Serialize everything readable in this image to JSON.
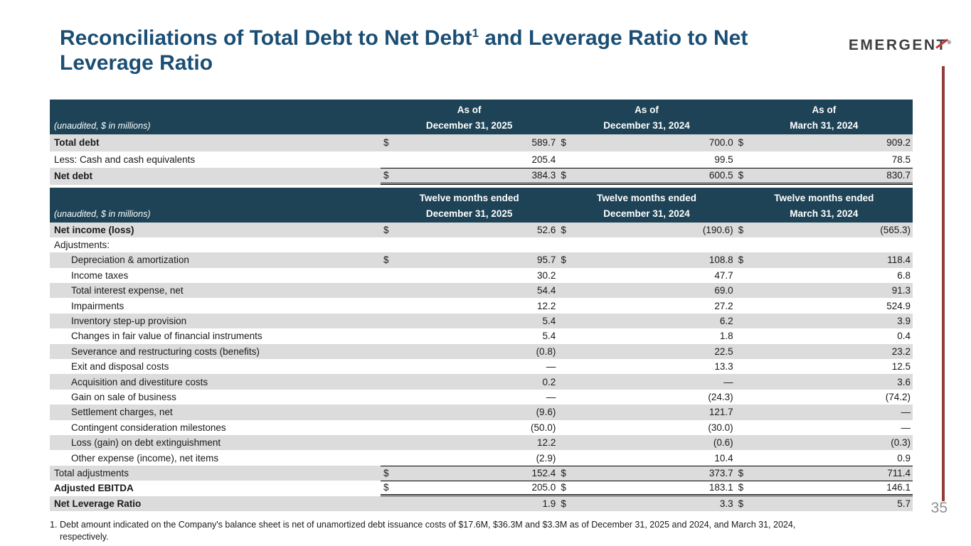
{
  "slide": {
    "title": {
      "pre": "Reconciliations of Total Debt to Net Debt",
      "sup": "1",
      "post": " and Leverage Ratio to Net",
      "line2": "Leverage Ratio"
    },
    "logo": {
      "pre": "EMERGEN",
      "t": "T",
      "reg": "®"
    },
    "page_number": "35",
    "footnote": {
      "marker": "1.",
      "line1": "Debt amount indicated on the Company's balance sheet is net of unamortized debt issuance costs of $17.6M,  $36.3M and $3.3M as of December 31, 2025 and 2024, and March 31, 2024,",
      "line2": "respectively."
    },
    "colors": {
      "title_blue": "#1b4e74",
      "header_bg": "#1e4356",
      "row_gray": "#dcdcdc",
      "accent_red": "#943c3c",
      "logo_red": "#c13a31"
    }
  },
  "table1": {
    "unaudited": "(unaudited, $ in millions)",
    "headers": [
      {
        "line1": "As of",
        "line2": "December 31, 2025"
      },
      {
        "line1": "As of",
        "line2": "December 31, 2024"
      },
      {
        "line1": "As of",
        "line2": "March 31, 2024"
      }
    ],
    "rows": [
      {
        "label": "Total debt",
        "d0": "$",
        "v0": "589.7",
        "d1": "$",
        "v1": "700.0",
        "d2": "$",
        "v2": "909.2"
      },
      {
        "label": "Less: Cash and cash equivalents",
        "v0": "205.4",
        "v1": "99.5",
        "v2": "78.5"
      },
      {
        "label": "Net debt",
        "d0": "$",
        "v0": "384.3",
        "d1": "$",
        "v1": "600.5",
        "d2": "$",
        "v2": "830.7"
      }
    ]
  },
  "table2": {
    "unaudited": "(unaudited, $ in millions)",
    "headers": [
      {
        "line1": "Twelve months ended",
        "line2": "December 31, 2025"
      },
      {
        "line1": "Twelve months ended",
        "line2": "December 31, 2024"
      },
      {
        "line1": "Twelve months ended",
        "line2": "March 31, 2024"
      }
    ],
    "rows": [
      {
        "label": "Net income (loss)",
        "d0": "$",
        "v0": "52.6",
        "d1": "$",
        "v1": "(190.6)",
        "d2": "$",
        "v2": "(565.3)"
      },
      {
        "label": "Adjustments:"
      },
      {
        "label": "Depreciation & amortization",
        "d0": "$",
        "v0": "95.7",
        "d1": "$",
        "v1": "108.8",
        "d2": "$",
        "v2": "118.4"
      },
      {
        "label": "Income taxes",
        "v0": "30.2",
        "v1": "47.7",
        "v2": "6.8"
      },
      {
        "label": "Total interest expense, net",
        "v0": "54.4",
        "v1": "69.0",
        "v2": "91.3"
      },
      {
        "label": "Impairments",
        "v0": "12.2",
        "v1": "27.2",
        "v2": "524.9"
      },
      {
        "label": "Inventory step-up provision",
        "v0": "5.4",
        "v1": "6.2",
        "v2": "3.9"
      },
      {
        "label": "Changes in fair value of financial instruments",
        "v0": "5.4",
        "v1": "1.8",
        "v2": "0.4"
      },
      {
        "label": "Severance and restructuring costs (benefits)",
        "v0": "(0.8)",
        "v1": "22.5",
        "v2": "23.2"
      },
      {
        "label": "Exit and disposal costs",
        "v0": "—",
        "v1": "13.3",
        "v2": "12.5"
      },
      {
        "label": "Acquisition and divestiture costs",
        "v0": "0.2",
        "v1": "—",
        "v2": "3.6"
      },
      {
        "label": "Gain on sale of business",
        "v0": "—",
        "v1": "(24.3)",
        "v2": "(74.2)"
      },
      {
        "label": "Settlement charges, net",
        "v0": "(9.6)",
        "v1": "121.7",
        "v2": "—"
      },
      {
        "label": "Contingent consideration milestones",
        "v0": "(50.0)",
        "v1": "(30.0)",
        "v2": "—"
      },
      {
        "label": "Loss (gain) on debt extinguishment",
        "v0": "12.2",
        "v1": "(0.6)",
        "v2": "(0.3)"
      },
      {
        "label": "Other expense (income), net items",
        "v0": "(2.9)",
        "v1": "10.4",
        "v2": "0.9"
      },
      {
        "label": "Total adjustments",
        "d0": "$",
        "v0": "152.4",
        "d1": "$",
        "v1": "373.7",
        "d2": "$",
        "v2": "711.4"
      },
      {
        "label": "Adjusted EBITDA",
        "d0": "$",
        "v0": "205.0",
        "d1": "$",
        "v1": "183.1",
        "d2": "$",
        "v2": "146.1"
      },
      {
        "label": "Net Leverage Ratio",
        "v0": "1.9",
        "d1": "$",
        "v1": "3.3",
        "d2": "$",
        "v2": "5.7"
      }
    ]
  }
}
